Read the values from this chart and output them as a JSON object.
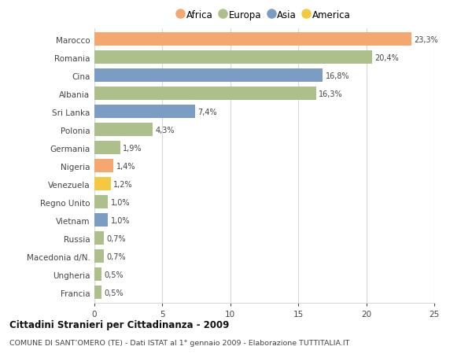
{
  "countries": [
    "Marocco",
    "Romania",
    "Cina",
    "Albania",
    "Sri Lanka",
    "Polonia",
    "Germania",
    "Nigeria",
    "Venezuela",
    "Regno Unito",
    "Vietnam",
    "Russia",
    "Macedonia d/N.",
    "Ungheria",
    "Francia"
  ],
  "values": [
    23.3,
    20.4,
    16.8,
    16.3,
    7.4,
    4.3,
    1.9,
    1.4,
    1.2,
    1.0,
    1.0,
    0.7,
    0.7,
    0.5,
    0.5
  ],
  "labels": [
    "23,3%",
    "20,4%",
    "16,8%",
    "16,3%",
    "7,4%",
    "4,3%",
    "1,9%",
    "1,4%",
    "1,2%",
    "1,0%",
    "1,0%",
    "0,7%",
    "0,7%",
    "0,5%",
    "0,5%"
  ],
  "continents": [
    "Africa",
    "Europa",
    "Asia",
    "Europa",
    "Asia",
    "Europa",
    "Europa",
    "Africa",
    "America",
    "Europa",
    "Asia",
    "Europa",
    "Europa",
    "Europa",
    "Europa"
  ],
  "continent_colors": {
    "Africa": "#F4A870",
    "Europa": "#ADBF8A",
    "Asia": "#7B9DC4",
    "America": "#F5C842"
  },
  "legend_order": [
    "Africa",
    "Europa",
    "Asia",
    "America"
  ],
  "bg_color": "#FFFFFF",
  "grid_color": "#D8D8D8",
  "title": "Cittadini Stranieri per Cittadinanza - 2009",
  "subtitle": "COMUNE DI SANT’OMERO (TE) - Dati ISTAT al 1° gennaio 2009 - Elaborazione TUTTITALIA.IT",
  "xlim": [
    0,
    25
  ],
  "xticks": [
    0,
    5,
    10,
    15,
    20,
    25
  ],
  "bar_height": 0.72
}
